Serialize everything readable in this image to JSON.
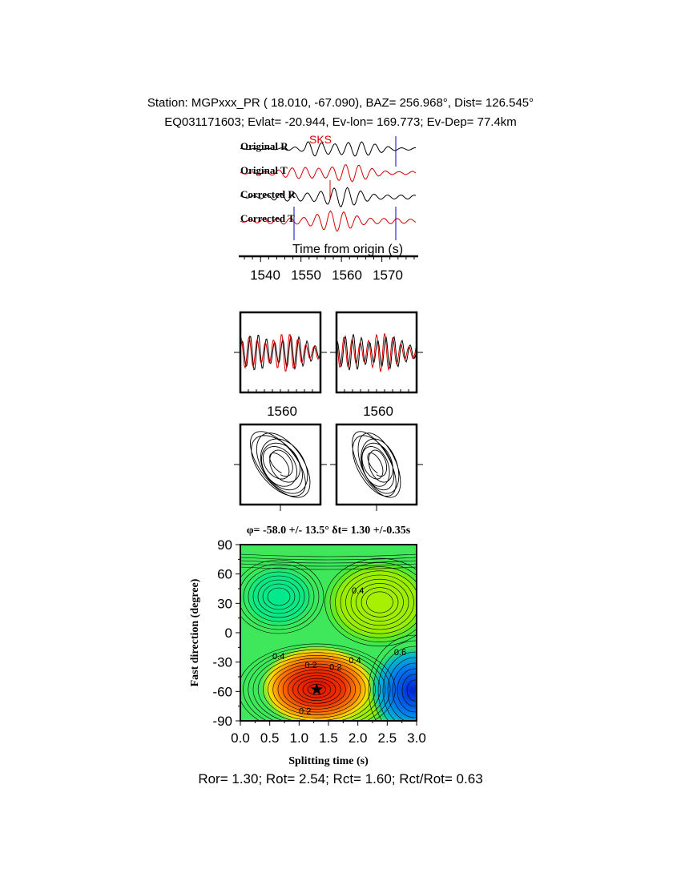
{
  "header": {
    "line1": "Station: MGPxxx_PR (  18.010,  -67.090), BAZ=  256.968°, Dist=  126.545°",
    "line2": "EQ031171603; Evlat= -20.944, Ev-lon= 169.773; Ev-Dep= 77.4km"
  },
  "traces": {
    "labels": [
      "Original R",
      "Original T",
      "Corrected R",
      "Corrected T"
    ],
    "phase_label": "SKS",
    "xlabel": "Time from origin (s)",
    "ticks": [
      "1540",
      "1550",
      "1560",
      "1570"
    ],
    "colors": [
      "#000000",
      "#d40000",
      "#000000",
      "#d40000"
    ],
    "marker_color": "#0000cc"
  },
  "window_panels": {
    "tick_label_left": "1560",
    "tick_label_right": "1560"
  },
  "footer": {
    "summary": "Ror= 1.30; Rot= 2.54; Rct= 1.60; Rct/Rot= 0.63"
  },
  "chart_data": {
    "type": "heatmap",
    "title": "φ= -58.0 +/- 13.5° δt= 1.30 +/-0.35s",
    "xlabel": "Splitting time (s)",
    "ylabel": "Fast direction (degree)",
    "xlim": [
      0.0,
      3.0
    ],
    "ylim": [
      -90,
      90
    ],
    "xticks": [
      "0.0",
      "0.5",
      "1.0",
      "1.5",
      "2.0",
      "2.5",
      "3.0"
    ],
    "yticks": [
      "90",
      "60",
      "30",
      "0",
      "-30",
      "-60",
      "-90"
    ],
    "best_fit": {
      "dt": 1.3,
      "phi": -58.0
    },
    "contour_labels": [
      {
        "text": "0.4",
        "x": 2.0,
        "y": 40
      },
      {
        "text": "0.4",
        "x": 0.65,
        "y": -27
      },
      {
        "text": "0.2",
        "x": 1.2,
        "y": -36
      },
      {
        "text": "0.2",
        "x": 1.62,
        "y": -38
      },
      {
        "text": "0.4",
        "x": 1.95,
        "y": -31
      },
      {
        "text": "0.6",
        "x": 2.72,
        "y": -23
      },
      {
        "text": "0.2",
        "x": 1.1,
        "y": -83
      }
    ]
  }
}
